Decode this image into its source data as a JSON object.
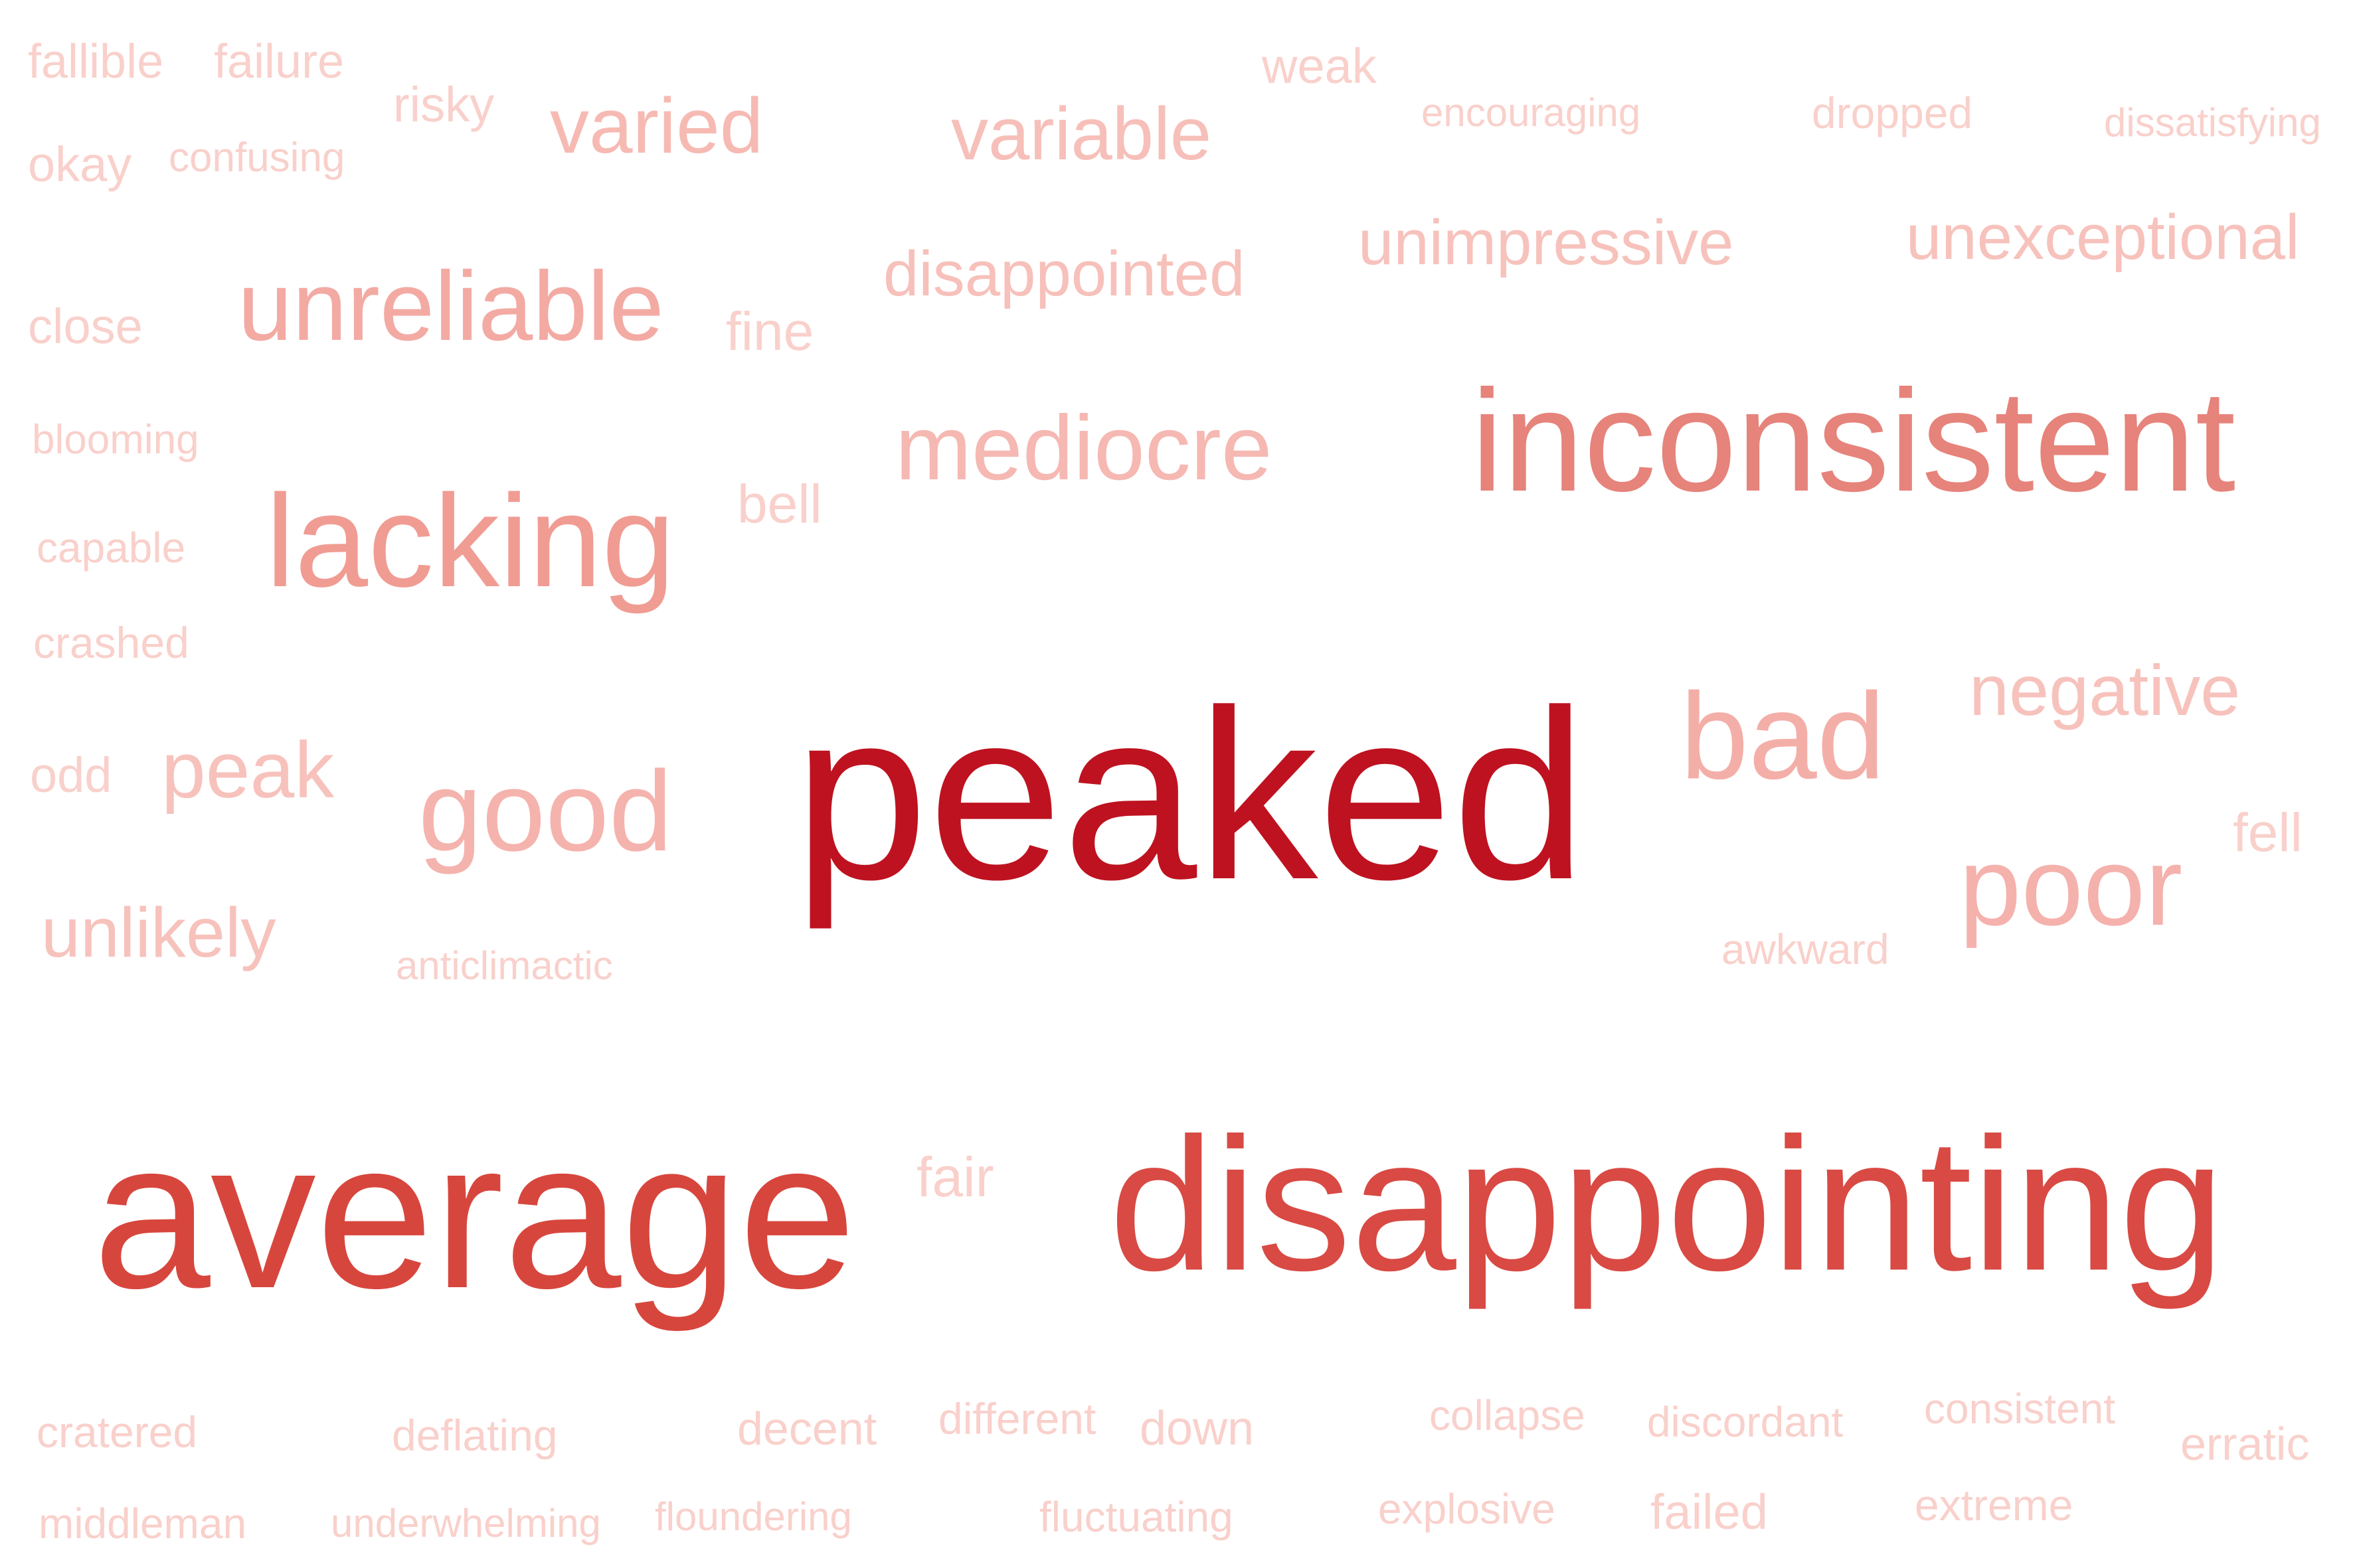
{
  "words": [
    {
      "text": "peaked",
      "color": "#be1220"
    },
    {
      "text": "average",
      "color": "#d7463d"
    },
    {
      "text": "disappointing",
      "color": "#d84a43"
    },
    {
      "text": "inconsistent",
      "color": "#e6837b"
    },
    {
      "text": "lacking",
      "color": "#f09c93"
    },
    {
      "text": "unreliable",
      "color": "#f3aaa3"
    },
    {
      "text": "bad",
      "color": "#f4aea8"
    },
    {
      "text": "poor",
      "color": "#f5b1ac"
    },
    {
      "text": "good",
      "color": "#f5b3ad"
    },
    {
      "text": "mediocre",
      "color": "#f6b8b2"
    },
    {
      "text": "varied",
      "color": "#f6bab3"
    },
    {
      "text": "variable",
      "color": "#f7bfb9"
    },
    {
      "text": "disappointed",
      "color": "#f7c0ba"
    },
    {
      "text": "unexceptional",
      "color": "#f7c2bc"
    },
    {
      "text": "unimpressive",
      "color": "#f7c2bc"
    },
    {
      "text": "negative",
      "color": "#f7c2bc"
    },
    {
      "text": "peak",
      "color": "#f7c2bc"
    },
    {
      "text": "unlikely",
      "color": "#f7c2bc"
    },
    {
      "text": "fair",
      "color": "#f9d0cb"
    },
    {
      "text": "fine",
      "color": "#f9d0cb"
    },
    {
      "text": "bell",
      "color": "#f9d0cb"
    },
    {
      "text": "fell",
      "color": "#f9d0cb"
    },
    {
      "text": "close",
      "color": "#f9d0cb"
    },
    {
      "text": "odd",
      "color": "#f9d0cb"
    },
    {
      "text": "okay",
      "color": "#f9d0cb"
    },
    {
      "text": "risky",
      "color": "#f9d0cb"
    },
    {
      "text": "weak",
      "color": "#f9d0cb"
    },
    {
      "text": "fallible",
      "color": "#f9d0cb"
    },
    {
      "text": "failure",
      "color": "#f9d0cb"
    },
    {
      "text": "confusing",
      "color": "#f9d0cb"
    },
    {
      "text": "encouraging",
      "color": "#f9d0cb"
    },
    {
      "text": "dropped",
      "color": "#f9d0cb"
    },
    {
      "text": "dissatisfying",
      "color": "#f9d0cb"
    },
    {
      "text": "blooming",
      "color": "#f9d0cb"
    },
    {
      "text": "capable",
      "color": "#f9d0cb"
    },
    {
      "text": "crashed",
      "color": "#f9d0cb"
    },
    {
      "text": "anticlimactic",
      "color": "#f9d0cb"
    },
    {
      "text": "awkward",
      "color": "#f9d0cb"
    },
    {
      "text": "cratered",
      "color": "#f9d0cb"
    },
    {
      "text": "deflating",
      "color": "#f9d0cb"
    },
    {
      "text": "decent",
      "color": "#f9d0cb"
    },
    {
      "text": "different",
      "color": "#f9d0cb"
    },
    {
      "text": "down",
      "color": "#f9d0cb"
    },
    {
      "text": "collapse",
      "color": "#f9d0cb"
    },
    {
      "text": "discordant",
      "color": "#f9d0cb"
    },
    {
      "text": "consistent",
      "color": "#f9d0cb"
    },
    {
      "text": "erratic",
      "color": "#f9d0cb"
    },
    {
      "text": "middleman",
      "color": "#f9d0cb"
    },
    {
      "text": "underwhelming",
      "color": "#f9d0cb"
    },
    {
      "text": "floundering",
      "color": "#f9d0cb"
    },
    {
      "text": "fluctuating",
      "color": "#f9d0cb"
    },
    {
      "text": "explosive",
      "color": "#f9d0cb"
    },
    {
      "text": "failed",
      "color": "#f9d0cb"
    },
    {
      "text": "extreme",
      "color": "#f9d0cb"
    }
  ]
}
